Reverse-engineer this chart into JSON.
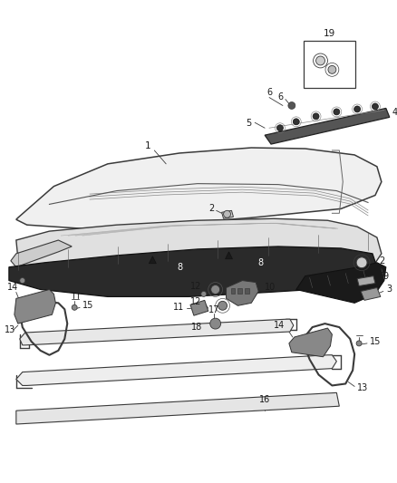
{
  "bg_color": "#ffffff",
  "fig_width": 4.38,
  "fig_height": 5.33,
  "dpi": 100,
  "line_color": "#3a3a3a",
  "label_color": "#1a1a1a"
}
